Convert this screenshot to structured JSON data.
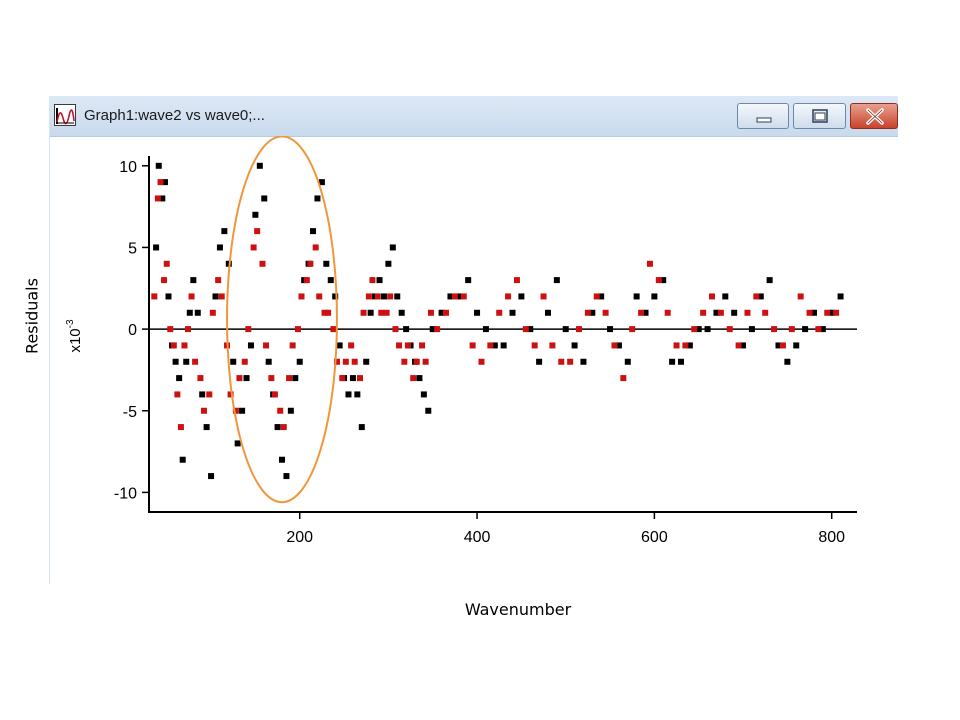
{
  "window": {
    "title": "Graph1:wave2 vs wave0;..."
  },
  "icons": {
    "app": "graph-icon",
    "minimize": "minimize-icon",
    "maximize": "maximize-icon",
    "close": "close-icon"
  },
  "colors": {
    "series_black": "#000000",
    "series_red": "#cc1111",
    "highlight_ellipse": "#f0963c",
    "close_button": "#c8432b"
  },
  "chart_data": {
    "type": "scatter",
    "xlabel": "Wavenumber",
    "ylabel": "Residuals",
    "y_unit_label_base": "x10",
    "y_unit_label_exp": "-3",
    "xlim": [
      30,
      815
    ],
    "ylim": [
      -11.2,
      10.6
    ],
    "x_ticks": [
      200,
      400,
      600,
      800
    ],
    "y_ticks": [
      10,
      5,
      0,
      -5,
      -10
    ],
    "zero_line": 0,
    "grid": false,
    "annotations": [
      {
        "type": "ellipse",
        "x_center": 180,
        "y_center": 0.6,
        "x_radius": 62,
        "y_radius": 11.2
      }
    ],
    "series": [
      {
        "color": "#000000",
        "x": [
          38,
          41,
          45,
          48,
          52,
          56,
          60,
          64,
          68,
          72,
          76,
          80,
          85,
          90,
          95,
          100,
          105,
          110,
          115,
          120,
          125,
          130,
          135,
          140,
          145,
          150,
          155,
          160,
          165,
          170,
          175,
          180,
          185,
          190,
          195,
          200,
          205,
          210,
          215,
          220,
          225,
          230,
          235,
          240,
          245,
          250,
          255,
          260,
          265,
          270,
          275,
          280,
          285,
          290,
          295,
          300,
          305,
          310,
          315,
          320,
          325,
          330,
          335,
          340,
          345,
          350,
          360,
          370,
          380,
          390,
          400,
          410,
          420,
          430,
          440,
          450,
          460,
          470,
          480,
          490,
          500,
          510,
          520,
          530,
          540,
          550,
          560,
          570,
          580,
          590,
          600,
          610,
          620,
          630,
          640,
          650,
          660,
          670,
          680,
          690,
          700,
          710,
          720,
          730,
          740,
          750,
          760,
          770,
          780,
          790,
          800,
          810
        ],
        "y": [
          5,
          10,
          8,
          9,
          2,
          -1,
          -2,
          -3,
          -8,
          -2,
          1,
          3,
          1,
          -4,
          -6,
          -9,
          2,
          5,
          6,
          4,
          -2,
          -7,
          -5,
          -3,
          -1,
          7,
          10,
          8,
          -2,
          -4,
          -6,
          -8,
          -9,
          -5,
          -3,
          -2,
          3,
          4,
          6,
          8,
          9,
          4,
          3,
          2,
          -1,
          -3,
          -4,
          -3,
          -4,
          -6,
          -2,
          1,
          2,
          3,
          2,
          4,
          5,
          2,
          1,
          0,
          -1,
          -2,
          -3,
          -4,
          -5,
          0,
          1,
          2,
          2,
          3,
          1,
          0,
          -1,
          -1,
          1,
          2,
          0,
          -2,
          1,
          3,
          0,
          -1,
          -2,
          1,
          2,
          0,
          -1,
          -2,
          2,
          1,
          2,
          3,
          -2,
          -2,
          -1,
          0,
          0,
          1,
          2,
          1,
          -1,
          0,
          2,
          3,
          -1,
          -2,
          -1,
          0,
          1,
          0,
          1,
          2
        ],
        "mark": "square"
      },
      {
        "color": "#cc1111",
        "x": [
          36,
          40,
          43,
          47,
          50,
          54,
          58,
          62,
          66,
          70,
          74,
          78,
          82,
          88,
          92,
          98,
          102,
          108,
          112,
          118,
          122,
          128,
          132,
          138,
          142,
          148,
          152,
          158,
          162,
          168,
          172,
          178,
          182,
          188,
          192,
          198,
          202,
          208,
          212,
          218,
          222,
          228,
          232,
          238,
          242,
          248,
          252,
          258,
          262,
          268,
          272,
          278,
          282,
          288,
          292,
          298,
          302,
          308,
          312,
          318,
          322,
          328,
          332,
          338,
          342,
          348,
          355,
          365,
          375,
          385,
          395,
          405,
          415,
          425,
          435,
          445,
          455,
          465,
          475,
          485,
          495,
          505,
          515,
          525,
          535,
          545,
          555,
          565,
          575,
          585,
          595,
          605,
          615,
          625,
          635,
          645,
          655,
          665,
          675,
          685,
          695,
          705,
          715,
          725,
          735,
          745,
          755,
          765,
          775,
          785,
          795,
          805
        ],
        "y": [
          2,
          8,
          9,
          3,
          4,
          0,
          -1,
          -4,
          -6,
          -1,
          0,
          2,
          -2,
          -3,
          -5,
          -4,
          1,
          3,
          2,
          -1,
          -4,
          -5,
          -3,
          -2,
          0,
          5,
          6,
          4,
          -1,
          -3,
          -4,
          -5,
          -6,
          -3,
          -1,
          0,
          2,
          3,
          4,
          5,
          2,
          1,
          1,
          0,
          -2,
          -3,
          -2,
          -1,
          -2,
          -3,
          1,
          2,
          3,
          2,
          1,
          1,
          2,
          0,
          -1,
          -2,
          -1,
          -3,
          -2,
          -1,
          -2,
          1,
          0,
          1,
          2,
          2,
          -1,
          -2,
          -1,
          1,
          2,
          3,
          0,
          -1,
          2,
          -1,
          -2,
          -2,
          0,
          1,
          2,
          1,
          -1,
          -3,
          0,
          1,
          4,
          3,
          1,
          -1,
          -1,
          0,
          1,
          2,
          1,
          0,
          -1,
          1,
          2,
          1,
          0,
          -1,
          0,
          2,
          1,
          0,
          1,
          1
        ],
        "mark": "square"
      }
    ]
  }
}
